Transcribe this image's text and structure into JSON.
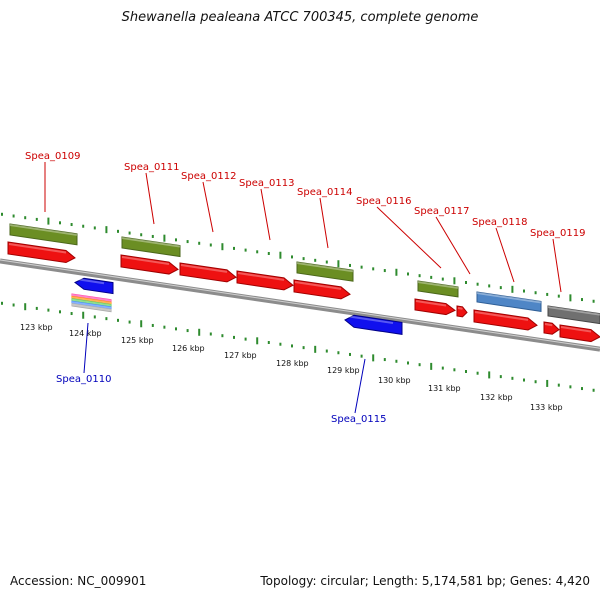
{
  "title": "Shewanella pealeana ATCC 700345, complete genome",
  "footer": {
    "accession": "Accession: NC_009901",
    "topology": "Topology: circular; Length: 5,174,581 bp; Genes: 4,420"
  },
  "colors": {
    "forward_label": "#cc0000",
    "reverse_label": "#0000bb",
    "backbone": "#8c8c8c",
    "ticks": "#2e8b2e"
  },
  "scale": {
    "labels": [
      "123 kbp",
      "124 kbp",
      "125 kbp",
      "126 kbp",
      "127 kbp",
      "128 kbp",
      "129 kbp",
      "130 kbp",
      "131 kbp",
      "132 kbp",
      "133 kbp"
    ]
  },
  "genes": {
    "top": [
      {
        "label": "Spea_0109"
      },
      {
        "label": "Spea_0111"
      },
      {
        "label": "Spea_0112"
      },
      {
        "label": "Spea_0113"
      },
      {
        "label": "Spea_0114"
      },
      {
        "label": "Spea_0116"
      },
      {
        "label": "Spea_0117"
      },
      {
        "label": "Spea_0118"
      },
      {
        "label": "Spea_0119"
      }
    ],
    "bottom": [
      {
        "label": "Spea_0110"
      },
      {
        "label": "Spea_0115"
      }
    ]
  }
}
